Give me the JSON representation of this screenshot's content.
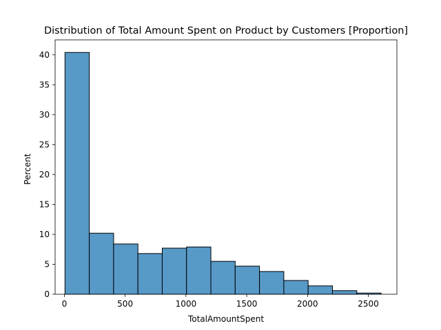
{
  "chart_data": {
    "type": "bar",
    "title": "Distribution of Total Amount Spent on Product by Customers [Proportion]",
    "xlabel": "TotalAmountSpent",
    "ylabel": "Percent",
    "xlim": [
      -76,
      2735
    ],
    "ylim": [
      0,
      42.5
    ],
    "xticks": [
      0,
      500,
      1000,
      1500,
      2000,
      2500
    ],
    "yticks": [
      0,
      5,
      10,
      15,
      20,
      25,
      30,
      35,
      40
    ],
    "grid": false,
    "bin_width": 200,
    "bins": [
      {
        "start": 5,
        "end": 205,
        "value": 40.4
      },
      {
        "start": 205,
        "end": 405,
        "value": 10.2
      },
      {
        "start": 405,
        "end": 605,
        "value": 8.4
      },
      {
        "start": 605,
        "end": 805,
        "value": 6.8
      },
      {
        "start": 805,
        "end": 1005,
        "value": 7.7
      },
      {
        "start": 1005,
        "end": 1205,
        "value": 7.9
      },
      {
        "start": 1205,
        "end": 1405,
        "value": 5.5
      },
      {
        "start": 1405,
        "end": 1605,
        "value": 4.7
      },
      {
        "start": 1605,
        "end": 1805,
        "value": 3.8
      },
      {
        "start": 1805,
        "end": 2005,
        "value": 2.3
      },
      {
        "start": 2005,
        "end": 2205,
        "value": 1.4
      },
      {
        "start": 2205,
        "end": 2405,
        "value": 0.6
      },
      {
        "start": 2405,
        "end": 2605,
        "value": 0.2
      }
    ],
    "colors": {
      "bar_fill": "#5799c7",
      "bar_edge": "#000000",
      "axes": "#000000"
    }
  }
}
